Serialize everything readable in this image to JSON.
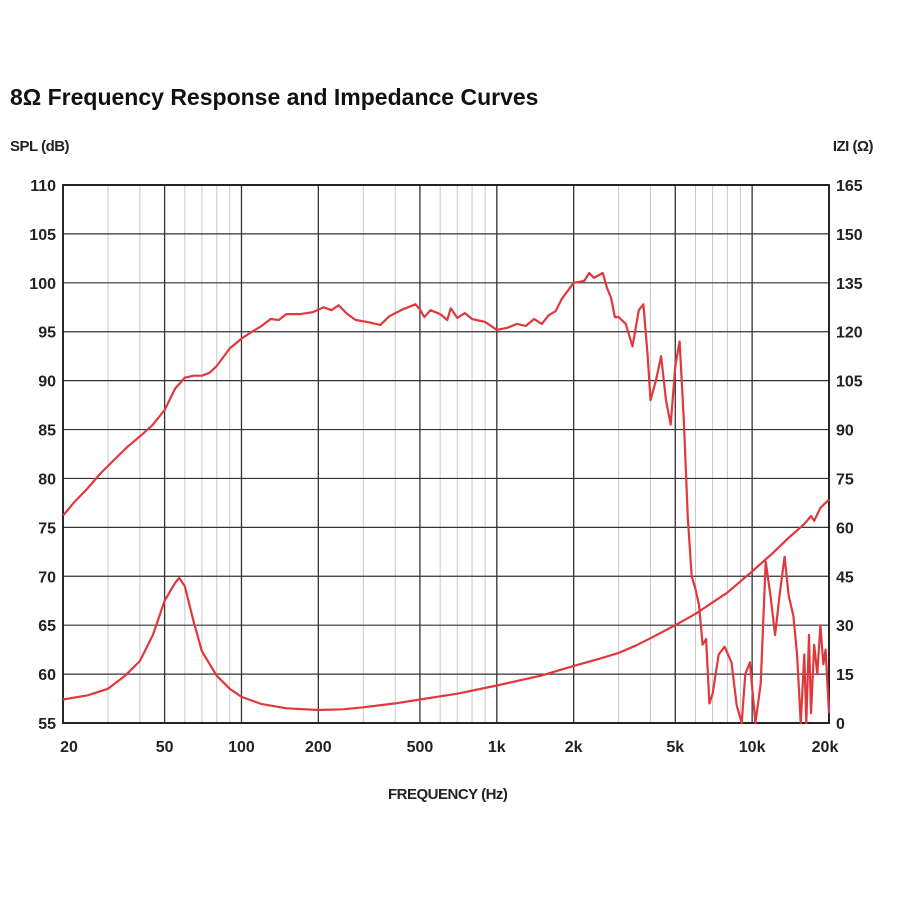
{
  "chart_data": {
    "type": "line",
    "title": "8Ω Frequency Response and Impedance Curves",
    "xlabel": "FREQUENCY (Hz)",
    "ylabel_left": "SPL (dB)",
    "ylabel_right": "IZI (Ω)",
    "x_scale": "log",
    "xlim": [
      20,
      20000
    ],
    "ylim_left": [
      55,
      110
    ],
    "ylim_right": [
      0,
      165
    ],
    "x_ticks": [
      {
        "value": 20,
        "label": "20"
      },
      {
        "value": 50,
        "label": "50"
      },
      {
        "value": 100,
        "label": "100"
      },
      {
        "value": 200,
        "label": "200"
      },
      {
        "value": 500,
        "label": "500"
      },
      {
        "value": 1000,
        "label": "1k"
      },
      {
        "value": 2000,
        "label": "2k"
      },
      {
        "value": 5000,
        "label": "5k"
      },
      {
        "value": 10000,
        "label": "10k"
      },
      {
        "value": 20000,
        "label": "20k"
      }
    ],
    "y_ticks_left": [
      55,
      60,
      65,
      70,
      75,
      80,
      85,
      90,
      95,
      100,
      105,
      110
    ],
    "y_ticks_right": [
      0,
      15,
      30,
      45,
      60,
      75,
      90,
      105,
      120,
      135,
      150,
      165
    ],
    "grid": true,
    "series": [
      {
        "axis": "left",
        "color": "#e0383c",
        "points": [
          [
            20,
            76.2
          ],
          [
            22,
            77.5
          ],
          [
            25,
            79
          ],
          [
            28,
            80.5
          ],
          [
            32,
            82
          ],
          [
            36,
            83.3
          ],
          [
            40,
            84.3
          ],
          [
            45,
            85.5
          ],
          [
            50,
            87
          ],
          [
            55,
            89.2
          ],
          [
            60,
            90.3
          ],
          [
            65,
            90.5
          ],
          [
            70,
            90.5
          ],
          [
            75,
            90.8
          ],
          [
            80,
            91.5
          ],
          [
            90,
            93.3
          ],
          [
            100,
            94.3
          ],
          [
            110,
            95
          ],
          [
            120,
            95.6
          ],
          [
            130,
            96.3
          ],
          [
            140,
            96.2
          ],
          [
            150,
            96.8
          ],
          [
            170,
            96.8
          ],
          [
            190,
            97
          ],
          [
            210,
            97.5
          ],
          [
            225,
            97.2
          ],
          [
            240,
            97.7
          ],
          [
            260,
            96.8
          ],
          [
            280,
            96.2
          ],
          [
            310,
            96
          ],
          [
            350,
            95.7
          ],
          [
            380,
            96.6
          ],
          [
            430,
            97.3
          ],
          [
            480,
            97.8
          ],
          [
            500,
            97.3
          ],
          [
            520,
            96.5
          ],
          [
            550,
            97.2
          ],
          [
            600,
            96.8
          ],
          [
            640,
            96.2
          ],
          [
            660,
            97.4
          ],
          [
            700,
            96.4
          ],
          [
            750,
            96.9
          ],
          [
            800,
            96.3
          ],
          [
            900,
            96
          ],
          [
            1000,
            95.2
          ],
          [
            1100,
            95.4
          ],
          [
            1200,
            95.8
          ],
          [
            1300,
            95.6
          ],
          [
            1400,
            96.3
          ],
          [
            1500,
            95.8
          ],
          [
            1600,
            96.7
          ],
          [
            1700,
            97.1
          ],
          [
            1800,
            98.4
          ],
          [
            1900,
            99.2
          ],
          [
            2000,
            100
          ],
          [
            2200,
            100.2
          ],
          [
            2300,
            101
          ],
          [
            2400,
            100.5
          ],
          [
            2600,
            101
          ],
          [
            2700,
            99.5
          ],
          [
            2800,
            98.5
          ],
          [
            2900,
            96.5
          ],
          [
            3000,
            96.5
          ],
          [
            3200,
            95.8
          ],
          [
            3400,
            93.5
          ],
          [
            3600,
            97.2
          ],
          [
            3750,
            97.8
          ],
          [
            3900,
            92.5
          ],
          [
            4000,
            88
          ],
          [
            4200,
            90
          ],
          [
            4400,
            92.5
          ],
          [
            4600,
            88
          ],
          [
            4800,
            85.5
          ],
          [
            5000,
            91.5
          ],
          [
            5200,
            94
          ],
          [
            5400,
            86
          ],
          [
            5600,
            76
          ],
          [
            5800,
            70
          ],
          [
            6000,
            68.7
          ],
          [
            6200,
            67
          ],
          [
            6400,
            63
          ],
          [
            6600,
            63.6
          ],
          [
            6800,
            57
          ],
          [
            7000,
            58
          ],
          [
            7400,
            62
          ],
          [
            7800,
            62.8
          ],
          [
            8300,
            61.2
          ],
          [
            8700,
            56.8
          ],
          [
            9100,
            55
          ],
          [
            9400,
            60
          ],
          [
            9800,
            61.2
          ],
          [
            10300,
            55
          ],
          [
            10800,
            59
          ],
          [
            11300,
            71.5
          ],
          [
            11800,
            68
          ],
          [
            12300,
            64
          ],
          [
            12800,
            68
          ],
          [
            13400,
            72
          ],
          [
            13900,
            68
          ],
          [
            14500,
            66
          ],
          [
            15000,
            62
          ],
          [
            15500,
            55
          ],
          [
            16000,
            62
          ],
          [
            16300,
            55
          ],
          [
            16700,
            64
          ],
          [
            17000,
            56
          ],
          [
            17500,
            63
          ],
          [
            18000,
            60
          ],
          [
            18500,
            65
          ],
          [
            19000,
            61
          ],
          [
            19400,
            62.5
          ],
          [
            20000,
            56
          ]
        ]
      },
      {
        "axis": "right",
        "color": "#e0383c",
        "points": [
          [
            20,
            7.2
          ],
          [
            25,
            8.5
          ],
          [
            30,
            10.5
          ],
          [
            35,
            14.5
          ],
          [
            40,
            19
          ],
          [
            45,
            27
          ],
          [
            50,
            37.5
          ],
          [
            55,
            43
          ],
          [
            57,
            44.5
          ],
          [
            60,
            42
          ],
          [
            65,
            31
          ],
          [
            70,
            22
          ],
          [
            80,
            14.5
          ],
          [
            90,
            10.5
          ],
          [
            100,
            8
          ],
          [
            120,
            5.8
          ],
          [
            150,
            4.5
          ],
          [
            200,
            4
          ],
          [
            250,
            4.2
          ],
          [
            300,
            4.8
          ],
          [
            400,
            6
          ],
          [
            500,
            7.2
          ],
          [
            700,
            9
          ],
          [
            1000,
            11.5
          ],
          [
            1500,
            14.6
          ],
          [
            2000,
            17.5
          ],
          [
            2500,
            19.6
          ],
          [
            3000,
            21.5
          ],
          [
            3500,
            23.7
          ],
          [
            4000,
            26
          ],
          [
            5000,
            30
          ],
          [
            6000,
            33.5
          ],
          [
            8000,
            40
          ],
          [
            10000,
            46.5
          ],
          [
            12000,
            52
          ],
          [
            14000,
            57
          ],
          [
            16000,
            61
          ],
          [
            17000,
            63.5
          ],
          [
            17500,
            62
          ],
          [
            18500,
            66
          ],
          [
            20000,
            68.5
          ]
        ]
      }
    ]
  }
}
